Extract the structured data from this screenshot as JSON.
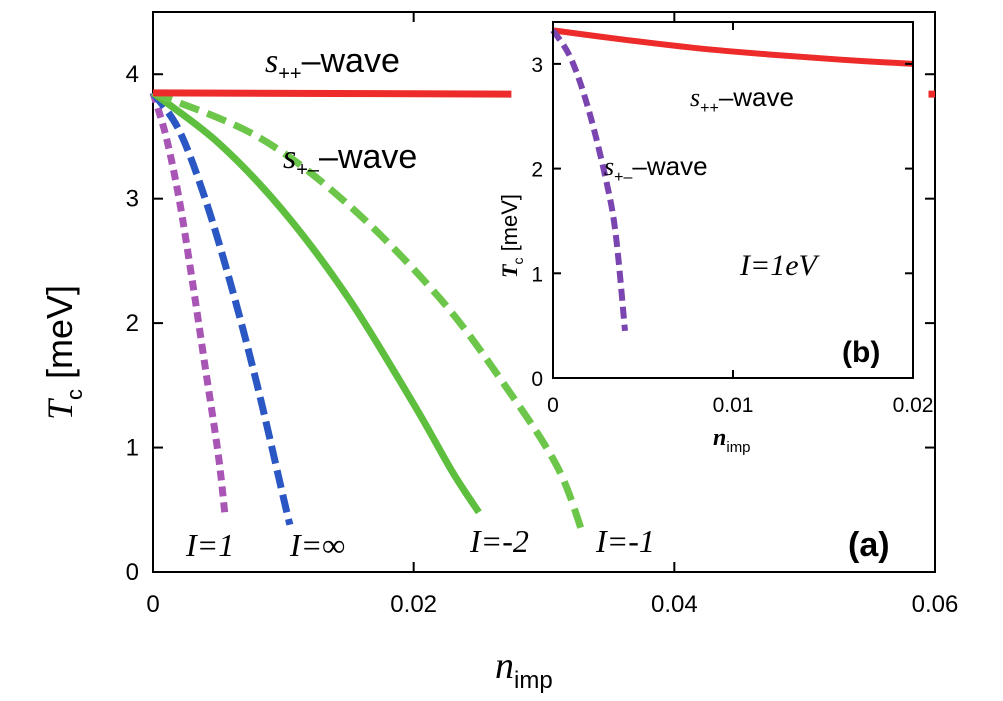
{
  "chart_data": [
    {
      "type": "line",
      "panel_label": "(a)",
      "xlabel": {
        "main": "n",
        "sub": "imp"
      },
      "ylabel": {
        "main": "T",
        "sub": "c",
        "unit": " [meV]"
      },
      "xlim": [
        0,
        0.06
      ],
      "ylim": [
        0,
        4.5
      ],
      "xticks": [
        0,
        0.02,
        0.04,
        0.06
      ],
      "xtick_labels": [
        "0",
        "0.02",
        "0.04",
        "0.06"
      ],
      "yticks": [
        0,
        1,
        2,
        3,
        4
      ],
      "ytick_labels": [
        "0",
        "1",
        "2",
        "3",
        "4"
      ],
      "series": [
        {
          "name": "I=1",
          "color": "#a855b5",
          "dash": "10,6",
          "x": [
            0,
            0.001,
            0.002,
            0.003,
            0.004,
            0.005,
            0.0055
          ],
          "y": [
            3.85,
            3.5,
            3.0,
            2.35,
            1.65,
            0.95,
            0.48
          ]
        },
        {
          "name": "I=∞",
          "color": "#2b57c4",
          "dash": "18,7",
          "x": [
            0,
            0.002,
            0.004,
            0.006,
            0.008,
            0.01,
            0.0105
          ],
          "y": [
            3.85,
            3.55,
            3.0,
            2.3,
            1.5,
            0.6,
            0.38
          ]
        },
        {
          "name": "I=-2",
          "color": "#5ebf3f",
          "dash": "",
          "x": [
            0,
            0.005,
            0.01,
            0.015,
            0.02,
            0.023,
            0.025
          ],
          "y": [
            3.85,
            3.45,
            2.9,
            2.2,
            1.35,
            0.8,
            0.48
          ]
        },
        {
          "name": "I=-1",
          "color": "#6cc64a",
          "dash": "20,9",
          "x": [
            0,
            0.008,
            0.015,
            0.022,
            0.027,
            0.031,
            0.033
          ],
          "y": [
            3.85,
            3.5,
            2.95,
            2.2,
            1.5,
            0.85,
            0.3
          ]
        },
        {
          "name": "s++ flat",
          "color": "#ee2b2b",
          "dash": "",
          "x": [
            0,
            0.0275
          ],
          "y": [
            3.85,
            3.84
          ]
        },
        {
          "name": "s++ tail",
          "color": "#ee2b2b",
          "dash": "",
          "x": [
            0.0595,
            0.06
          ],
          "y": [
            3.84,
            3.84
          ]
        }
      ],
      "annotations": [
        {
          "id": "s-pp",
          "sym": "s",
          "sub": "++",
          "text": "–wave"
        },
        {
          "id": "s-pm",
          "sym": "s",
          "sub": "+–",
          "text": "–wave"
        },
        {
          "id": "I1",
          "text": "I=1"
        },
        {
          "id": "Iinf",
          "text": "I=∞"
        },
        {
          "id": "Im2",
          "text": "I=-2"
        },
        {
          "id": "Im1",
          "text": "I=-1"
        }
      ]
    },
    {
      "type": "line",
      "panel_label": "(b)",
      "xlabel": {
        "main": "n",
        "sub": "imp"
      },
      "ylabel": {
        "main": "T",
        "sub": "c",
        "unit": " [meV]"
      },
      "xlim": [
        0,
        0.02
      ],
      "ylim": [
        0,
        3.4
      ],
      "xticks": [
        0,
        0.01,
        0.02
      ],
      "xtick_labels": [
        "0",
        "0.01",
        "0.02"
      ],
      "yticks": [
        0,
        1,
        2,
        3
      ],
      "ytick_labels": [
        "0",
        "1",
        "2",
        "3"
      ],
      "series": [
        {
          "name": "s++",
          "color": "#ee2b2b",
          "dash": "",
          "x": [
            0,
            0.004,
            0.008,
            0.012,
            0.016,
            0.02
          ],
          "y": [
            3.32,
            3.23,
            3.15,
            3.09,
            3.04,
            3.0
          ]
        },
        {
          "name": "s+-",
          "color": "#7a45b0",
          "dash": "12,6",
          "x": [
            0,
            0.001,
            0.002,
            0.003,
            0.0035,
            0.004
          ],
          "y": [
            3.32,
            3.05,
            2.55,
            1.85,
            1.35,
            0.45
          ]
        }
      ],
      "annotations": [
        {
          "id": "s-pp",
          "sym": "s",
          "sub": "++",
          "text": "–wave"
        },
        {
          "id": "s-pm",
          "sym": "s",
          "sub": "+–",
          "text": "–wave"
        },
        {
          "id": "I1eV",
          "text": "I=1eV"
        }
      ]
    }
  ]
}
